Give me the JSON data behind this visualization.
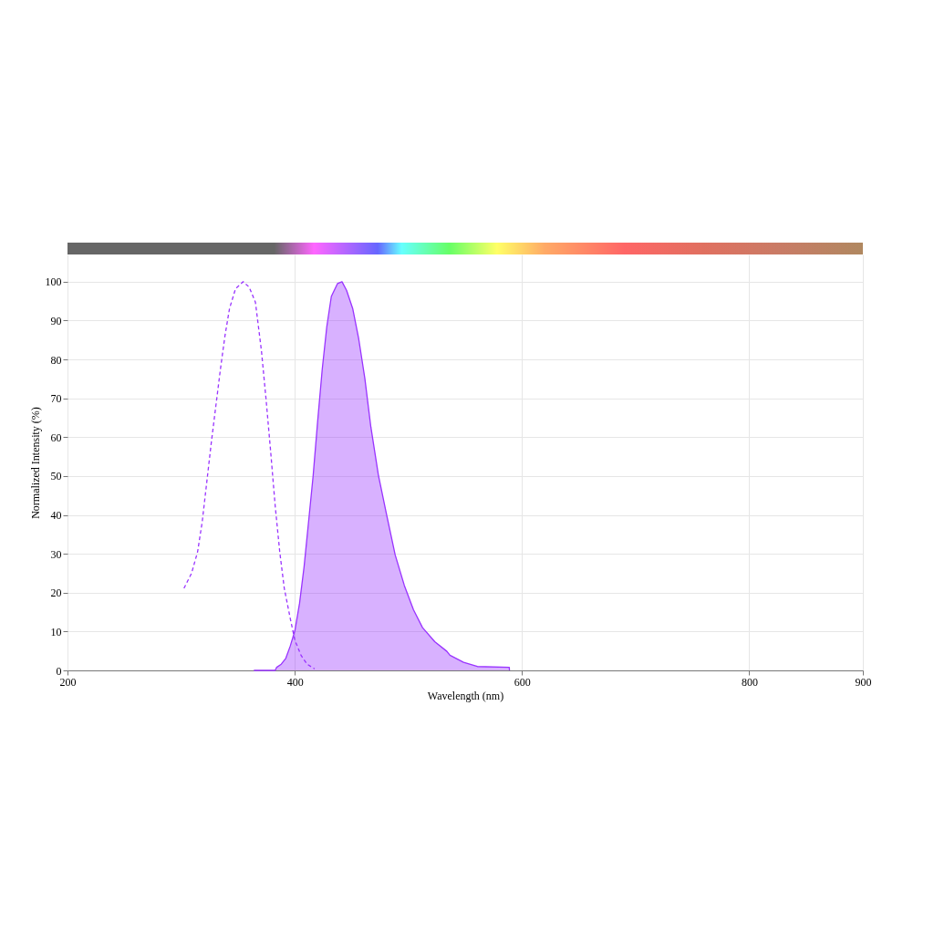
{
  "chart_data": {
    "type": "line",
    "xlabel": "Wavelength (nm)",
    "ylabel": "Normalized Intensity (%)",
    "xlim": [
      200,
      900
    ],
    "xticks": [
      200,
      400,
      600,
      800,
      900
    ],
    "ylim": [
      0,
      107
    ],
    "yticks": [
      0,
      10,
      20,
      30,
      40,
      50,
      60,
      70,
      80,
      90,
      100
    ],
    "grid": true,
    "marker": "none",
    "series": [
      {
        "line_style": "dashed",
        "color": "#9933ff",
        "x": [
          302.5,
          309.2,
          314.5,
          318.6,
          322.6,
          326.6,
          330.6,
          334.6,
          338.6,
          342.6,
          347.9,
          354.6,
          359.9,
          365.4,
          370.7,
          374.8,
          378.8,
          382.8,
          386.8,
          390.8,
          396.1,
          400.1,
          405.5,
          410.9,
          417.5
        ],
        "values": [
          21.1,
          25,
          30.5,
          38.3,
          48.5,
          58.7,
          68.1,
          77.5,
          86.1,
          93.1,
          98.2,
          100,
          98.6,
          94.7,
          82.2,
          69.6,
          56.3,
          42.3,
          30.5,
          21.1,
          13.3,
          7.8,
          3.9,
          1.6,
          0.4
        ]
      },
      {
        "type": "area",
        "line_style": "solid",
        "color": "#9933ff",
        "x": [
          364,
          382.8,
          384.1,
          388.1,
          392.1,
          396.1,
          400.1,
          404.2,
          408.2,
          412.2,
          416.2,
          420.2,
          424.2,
          428.2,
          432.2,
          437.6,
          441.6,
          445.6,
          451,
          456.3,
          461.7,
          467,
          473.7,
          480.4,
          488.4,
          496.4,
          504.5,
          512.5,
          523.2,
          533.9,
          536.6,
          548.6,
          560.7,
          588.8,
          589
        ],
        "values": [
          0,
          0,
          0.8,
          1.6,
          3.1,
          6.3,
          10.2,
          17.2,
          26.6,
          38.3,
          50.1,
          64.2,
          77.5,
          88.4,
          96.2,
          99.5,
          100,
          97.8,
          93.1,
          85.3,
          75.1,
          62.6,
          50.1,
          40.7,
          29.7,
          21.9,
          15.6,
          11,
          7.4,
          4.9,
          3.9,
          2.1,
          1,
          0.8,
          0
        ]
      }
    ]
  }
}
